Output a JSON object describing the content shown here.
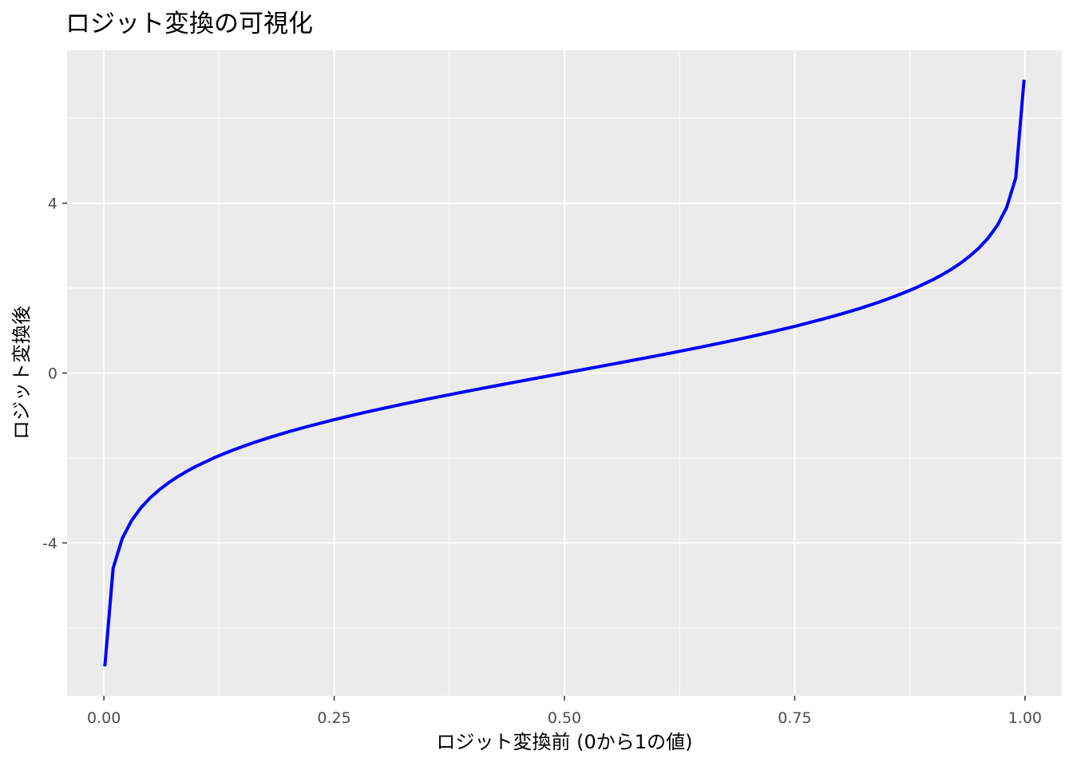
{
  "chart_data": {
    "type": "line",
    "title": "ロジット変換の可視化",
    "xlabel": "ロジット変換前 (0から1の値)",
    "ylabel": "ロジット変換後",
    "xlim": [
      -0.04,
      1.04
    ],
    "ylim": [
      -7.6,
      7.6
    ],
    "x_ticks": [
      0,
      0.25,
      0.5,
      0.75,
      1
    ],
    "x_tick_labels": [
      "0.00",
      "0.25",
      "0.50",
      "0.75",
      "1.00"
    ],
    "y_ticks": [
      -4,
      0,
      4
    ],
    "y_tick_labels": [
      "-4",
      "0",
      "4"
    ],
    "grid": true,
    "series": [
      {
        "color": "#0000ff",
        "x": [
          0.001,
          0.01,
          0.02,
          0.03,
          0.04,
          0.05,
          0.06,
          0.07,
          0.08,
          0.09,
          0.1,
          0.12,
          0.14,
          0.16,
          0.18,
          0.2,
          0.22,
          0.25,
          0.28,
          0.3,
          0.33,
          0.35,
          0.38,
          0.4,
          0.43,
          0.45,
          0.48,
          0.5,
          0.52,
          0.55,
          0.57,
          0.6,
          0.62,
          0.65,
          0.67,
          0.7,
          0.72,
          0.75,
          0.78,
          0.8,
          0.82,
          0.84,
          0.86,
          0.88,
          0.9,
          0.91,
          0.92,
          0.93,
          0.94,
          0.95,
          0.96,
          0.97,
          0.98,
          0.99,
          0.999
        ],
        "y": [
          -6.907,
          -4.595,
          -3.892,
          -3.476,
          -3.178,
          -2.944,
          -2.752,
          -2.587,
          -2.442,
          -2.314,
          -2.197,
          -1.992,
          -1.815,
          -1.658,
          -1.516,
          -1.386,
          -1.266,
          -1.099,
          -0.944,
          -0.847,
          -0.708,
          -0.619,
          -0.49,
          -0.405,
          -0.282,
          -0.201,
          -0.08,
          0.0,
          0.08,
          0.201,
          0.282,
          0.405,
          0.49,
          0.619,
          0.708,
          0.847,
          0.944,
          1.099,
          1.266,
          1.386,
          1.516,
          1.658,
          1.815,
          1.992,
          2.197,
          2.314,
          2.442,
          2.587,
          2.752,
          2.944,
          3.178,
          3.476,
          3.892,
          4.595,
          6.907
        ]
      }
    ]
  }
}
